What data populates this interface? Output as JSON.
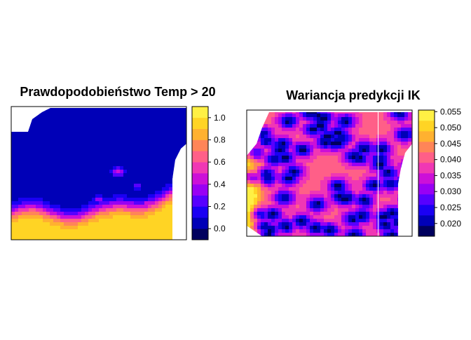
{
  "chart_data": [
    {
      "type": "heatmap",
      "title": "Prawdopodobieństwo Temp > 20",
      "xlabel": "",
      "ylabel": "",
      "legend_placement": "right",
      "color_scale": {
        "min": -0.1,
        "max": 1.1,
        "ticks": [
          0.0,
          0.2,
          0.4,
          0.6,
          0.8,
          1.0
        ],
        "tick_labels": [
          "0.0",
          "0.2",
          "0.4",
          "0.6",
          "0.8",
          "1.0"
        ],
        "palette": [
          "#000033",
          "#000088",
          "#0000e6",
          "#3300ff",
          "#7a00ff",
          "#b800e8",
          "#e020c8",
          "#ff4da0",
          "#ff7070",
          "#ff9a40",
          "#ffc820",
          "#ffe028",
          "#ffff60"
        ]
      },
      "field_description": "mostly near 0 (dark navy); high values (~1) along the bottom edge and lower right corner; small local bumps in the interior"
    },
    {
      "type": "heatmap",
      "title": "Wariancja predykcji IK",
      "xlabel": "",
      "ylabel": "",
      "legend_placement": "right",
      "color_scale": {
        "min": 0.016,
        "max": 0.0555,
        "ticks": [
          0.02,
          0.025,
          0.03,
          0.035,
          0.04,
          0.045,
          0.05,
          0.055
        ],
        "tick_labels": [
          "0.020",
          "0.025",
          "0.030",
          "0.035",
          "0.040",
          "0.045",
          "0.050",
          "0.055"
        ],
        "palette": [
          "#000033",
          "#000088",
          "#0000e6",
          "#3300ff",
          "#7a00ff",
          "#b800e8",
          "#e020c8",
          "#ff4da0",
          "#ff7070",
          "#ff9a40",
          "#ffc820",
          "#ffe028",
          "#ffff60"
        ]
      },
      "field_description": "speckled pattern of low-variance spots (~0.02) at data locations, higher variance (~0.03-0.04) between them, highest (~0.05) along the left edge",
      "vertical_line_annotation": true
    }
  ]
}
